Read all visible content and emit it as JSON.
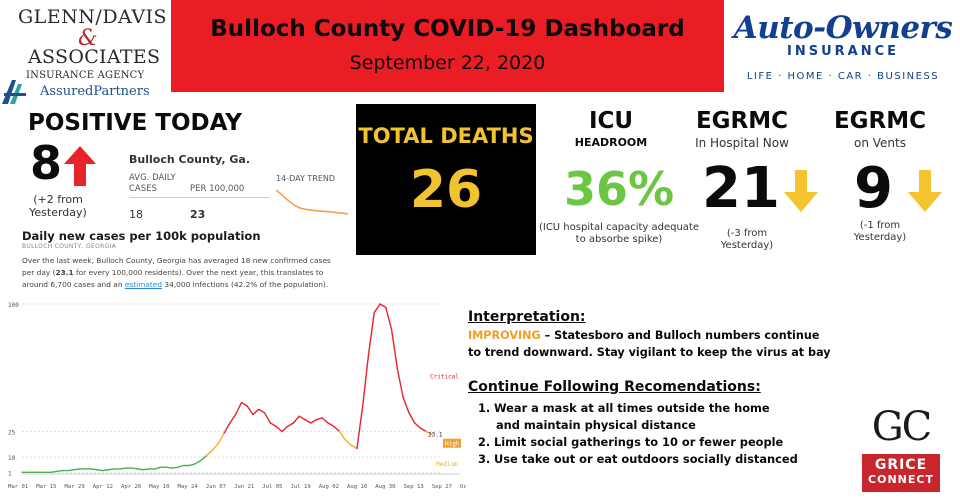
{
  "header": {
    "left_logo": {
      "line1": "GLENN/DAVIS",
      "amp": "&",
      "line2": "ASSOCIATES",
      "line3": "INSURANCE AGENCY",
      "line4": "AssuredPartners"
    },
    "banner": {
      "title": "Bulloch County COVID-19 Dashboard",
      "date": "September 22, 2020",
      "color": "#ea1c24"
    },
    "right_logo": {
      "name": "Auto-Owners",
      "insurance": "INSURANCE",
      "tagline": "LIFE · HOME · CAR · BUSINESS",
      "color": "#123f8f"
    }
  },
  "positive": {
    "title": "POSITIVE TODAY",
    "value": "8",
    "trend_icon": "red-up-arrow-icon",
    "note": "(+2 from Yesterday)"
  },
  "county_stats": {
    "county": "Bulloch County, Ga.",
    "avg_label": "AVG. DAILY CASES",
    "per_label": "PER 100,000",
    "avg_value": "18",
    "per_value": "23",
    "trend_label": "14-DAY TREND"
  },
  "cases_panel": {
    "title": "Daily new cases per 100k population",
    "subtitle": "BULLOCH COUNTY, GEORGIA",
    "desc_1": "Over the last week, Bulloch County, Georgia has averaged 18 new confirmed cases per day (",
    "desc_bold": "23.1",
    "desc_2": " for every 100,000 residents). Over the next year, this translates to around 6,700 cases and an ",
    "desc_link": "estimated",
    "desc_3": " 34,000 infections (42.2% of the population)."
  },
  "deaths": {
    "title": "TOTAL DEATHS",
    "value": "26",
    "color": "#f2c230"
  },
  "icu": {
    "title": "ICU",
    "subtitle": "HEADROOM",
    "value": "36%",
    "note": "(ICU hospital capacity adequate to absorbe spike)",
    "color": "#6cc644"
  },
  "egrmc_hospital": {
    "title": "EGRMC",
    "subtitle": "In Hospital Now",
    "value": "21",
    "trend_icon": "yellow-down-arrow-icon",
    "note": "(-3 from Yesterday)"
  },
  "egrmc_vents": {
    "title": "EGRMC",
    "subtitle": "on Vents",
    "value": "9",
    "trend_icon": "yellow-down-arrow-icon",
    "note": "(-1 from Yesterday)"
  },
  "interpretation": {
    "title": "Interpretation:",
    "status": "IMPROVING",
    "line1_rest": " – Statesboro and Bulloch numbers continue",
    "line2": "to trend downward.  Stay vigilant to keep the virus at bay",
    "status_color": "#f49b2a"
  },
  "recommendations": {
    "title": "Continue Following Recomendations:",
    "items": [
      {
        "num": "1.",
        "text": "Wear a mask at all times outside the home",
        "cont": "and maintain physical distance"
      },
      {
        "num": "2.",
        "text": "Limit social gatherings to 10 or fewer people"
      },
      {
        "num": "3.",
        "text": "Use take out or eat outdoors socially distanced"
      }
    ]
  },
  "gc_logo": {
    "letters": "GC",
    "line1": "GRICE",
    "line2": "CONNECT"
  },
  "chart_data": {
    "type": "line",
    "x_tick_labels": [
      "Mar 01",
      "Mar 15",
      "Mar 29",
      "Apr 12",
      "Apr 26",
      "May 10",
      "May 24",
      "Jun 07",
      "Jun 21",
      "Jul 05",
      "Jul 19",
      "Aug 02",
      "Aug 16",
      "Aug 30",
      "Sep 13",
      "Sep 27",
      "Oct 1"
    ],
    "y_tick_labels": [
      "1",
      "10",
      "25",
      "100"
    ],
    "y_ticks": [
      1,
      10,
      25,
      100
    ],
    "ylim": [
      0,
      100
    ],
    "threshold_labels": [
      "Critical",
      "High",
      "Medium"
    ],
    "current_value_label": "23.1",
    "series": [
      {
        "values": [
          1,
          1,
          1,
          1,
          1,
          1,
          1.5,
          2,
          2,
          2.5,
          3,
          3,
          3,
          2.5,
          2,
          2.5,
          3,
          3,
          3.5,
          3.5,
          3,
          2.5,
          3,
          3,
          4,
          4,
          3.5,
          4,
          5,
          5,
          6,
          8,
          11,
          14,
          18,
          24,
          30,
          35,
          42,
          40,
          35,
          38,
          36,
          30,
          28,
          25,
          28,
          30,
          34,
          32,
          30,
          32,
          33,
          30,
          28,
          25,
          20,
          17,
          15,
          40,
          70,
          95,
          100,
          98,
          85,
          62,
          45,
          36,
          30,
          27,
          25,
          23.1
        ]
      }
    ],
    "colors": {
      "low": "#4caf50",
      "medium": "#f5b021",
      "high": "#f0a030",
      "critical": "#e8232a"
    }
  }
}
